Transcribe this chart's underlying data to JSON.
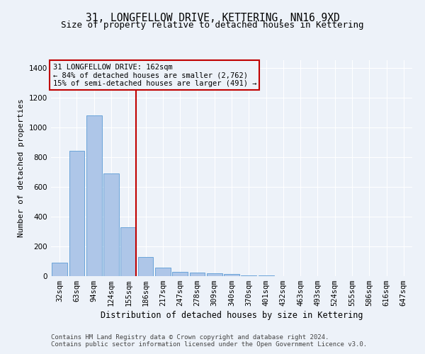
{
  "title_line1": "31, LONGFELLOW DRIVE, KETTERING, NN16 9XD",
  "title_line2": "Size of property relative to detached houses in Kettering",
  "xlabel": "Distribution of detached houses by size in Kettering",
  "ylabel": "Number of detached properties",
  "categories": [
    "32sqm",
    "63sqm",
    "94sqm",
    "124sqm",
    "155sqm",
    "186sqm",
    "217sqm",
    "247sqm",
    "278sqm",
    "309sqm",
    "340sqm",
    "370sqm",
    "401sqm",
    "432sqm",
    "463sqm",
    "493sqm",
    "524sqm",
    "555sqm",
    "586sqm",
    "616sqm",
    "647sqm"
  ],
  "values": [
    90,
    840,
    1080,
    690,
    330,
    130,
    55,
    30,
    25,
    20,
    12,
    5,
    3,
    2,
    1,
    1,
    0,
    0,
    0,
    0,
    0
  ],
  "highlight_index": 4,
  "bar_color": "#aec6e8",
  "bar_edge_color": "#5b9bd5",
  "vline_color": "#c00000",
  "vline_x": 4,
  "annotation_text": "31 LONGFELLOW DRIVE: 162sqm\n← 84% of detached houses are smaller (2,762)\n15% of semi-detached houses are larger (491) →",
  "annotation_box_color": "#c00000",
  "ylim": [
    0,
    1450
  ],
  "yticks": [
    0,
    200,
    400,
    600,
    800,
    1000,
    1200,
    1400
  ],
  "footer_line1": "Contains HM Land Registry data © Crown copyright and database right 2024.",
  "footer_line2": "Contains public sector information licensed under the Open Government Licence v3.0.",
  "bg_color": "#edf2f9",
  "grid_color": "#ffffff",
  "title1_fontsize": 10.5,
  "title2_fontsize": 9,
  "xlabel_fontsize": 8.5,
  "ylabel_fontsize": 8,
  "footer_fontsize": 6.5,
  "tick_fontsize": 7.5,
  "annotation_fontsize": 7.5
}
